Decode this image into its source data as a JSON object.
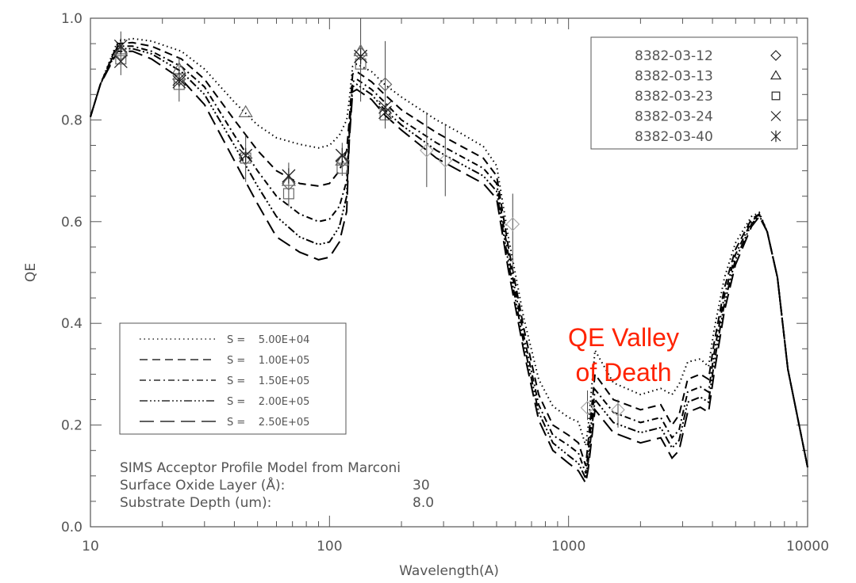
{
  "chart_data": {
    "type": "line",
    "title": "",
    "xlabel": "Wavelength(A)",
    "ylabel": "QE",
    "xscale": "log",
    "xlim": [
      10,
      10000
    ],
    "ylim": [
      0.0,
      1.0
    ],
    "xticks": [
      "10",
      "100",
      "1000",
      "10000"
    ],
    "yticks": [
      "0.0",
      "0.2",
      "0.4",
      "0.6",
      "0.8",
      "1.0"
    ],
    "grid": false,
    "x": [
      10,
      11,
      13,
      15,
      18,
      24,
      30,
      40,
      50,
      60,
      75,
      90,
      100,
      110,
      118,
      121,
      125,
      130,
      150,
      170,
      200,
      280,
      350,
      440,
      500,
      560,
      650,
      750,
      860,
      1000,
      1100,
      1180,
      1210,
      1290,
      1540,
      2000,
      2430,
      2710,
      2900,
      3150,
      3560,
      3850,
      4060,
      4490,
      4990,
      5820,
      6280,
      6780,
      7480,
      8270,
      10000
    ],
    "series": [
      {
        "name": "S =   5.00E+04",
        "style": "dotted",
        "values": [
          0.806,
          0.87,
          0.955,
          0.96,
          0.955,
          0.935,
          0.9,
          0.835,
          0.79,
          0.765,
          0.752,
          0.745,
          0.75,
          0.77,
          0.8,
          0.84,
          0.905,
          0.91,
          0.895,
          0.87,
          0.845,
          0.8,
          0.775,
          0.748,
          0.71,
          0.57,
          0.41,
          0.29,
          0.237,
          0.215,
          0.206,
          0.16,
          0.2,
          0.347,
          0.283,
          0.26,
          0.272,
          0.26,
          0.28,
          0.324,
          0.33,
          0.315,
          0.386,
          0.49,
          0.558,
          0.61,
          0.618,
          0.58,
          0.49,
          0.31,
          0.117
        ]
      },
      {
        "name": "S =   1.00E+05",
        "style": "dashed",
        "values": [
          0.806,
          0.87,
          0.95,
          0.952,
          0.945,
          0.92,
          0.88,
          0.8,
          0.74,
          0.7,
          0.675,
          0.67,
          0.675,
          0.7,
          0.74,
          0.8,
          0.89,
          0.895,
          0.875,
          0.85,
          0.82,
          0.775,
          0.75,
          0.725,
          0.69,
          0.55,
          0.39,
          0.26,
          0.2,
          0.18,
          0.165,
          0.12,
          0.17,
          0.3,
          0.25,
          0.23,
          0.24,
          0.2,
          0.22,
          0.29,
          0.3,
          0.29,
          0.36,
          0.47,
          0.545,
          0.605,
          0.615,
          0.58,
          0.49,
          0.31,
          0.117
        ]
      },
      {
        "name": "S =   1.50E+05",
        "style": "dash-dot",
        "values": [
          0.806,
          0.87,
          0.945,
          0.945,
          0.935,
          0.905,
          0.865,
          0.77,
          0.7,
          0.65,
          0.615,
          0.6,
          0.605,
          0.63,
          0.68,
          0.78,
          0.875,
          0.88,
          0.86,
          0.835,
          0.8,
          0.755,
          0.73,
          0.705,
          0.675,
          0.535,
          0.375,
          0.24,
          0.18,
          0.16,
          0.145,
          0.105,
          0.15,
          0.27,
          0.225,
          0.205,
          0.215,
          0.175,
          0.19,
          0.265,
          0.275,
          0.265,
          0.34,
          0.455,
          0.535,
          0.6,
          0.615,
          0.58,
          0.49,
          0.31,
          0.117
        ]
      },
      {
        "name": "S =   2.00E+05",
        "style": "dash-dot-dot",
        "values": [
          0.806,
          0.87,
          0.94,
          0.94,
          0.93,
          0.895,
          0.85,
          0.75,
          0.67,
          0.61,
          0.57,
          0.555,
          0.56,
          0.59,
          0.65,
          0.77,
          0.865,
          0.87,
          0.85,
          0.82,
          0.79,
          0.74,
          0.715,
          0.69,
          0.66,
          0.52,
          0.36,
          0.225,
          0.165,
          0.14,
          0.125,
          0.095,
          0.13,
          0.25,
          0.205,
          0.185,
          0.195,
          0.155,
          0.17,
          0.245,
          0.255,
          0.245,
          0.32,
          0.44,
          0.525,
          0.595,
          0.612,
          0.58,
          0.49,
          0.31,
          0.117
        ]
      },
      {
        "name": "S =   2.50E+05",
        "style": "long-dash",
        "values": [
          0.806,
          0.87,
          0.935,
          0.935,
          0.92,
          0.88,
          0.83,
          0.72,
          0.635,
          0.57,
          0.54,
          0.525,
          0.53,
          0.56,
          0.62,
          0.76,
          0.855,
          0.86,
          0.84,
          0.81,
          0.78,
          0.725,
          0.7,
          0.675,
          0.645,
          0.505,
          0.345,
          0.21,
          0.15,
          0.125,
          0.11,
          0.086,
          0.115,
          0.23,
          0.185,
          0.165,
          0.175,
          0.135,
          0.15,
          0.225,
          0.235,
          0.225,
          0.3,
          0.425,
          0.515,
          0.59,
          0.61,
          0.58,
          0.49,
          0.31,
          0.117
        ]
      }
    ],
    "measurements_legend": [
      {
        "name": "8382-03-12",
        "symbol": "diamond"
      },
      {
        "name": "8382-03-13",
        "symbol": "triangle"
      },
      {
        "name": "8382-03-23",
        "symbol": "square"
      },
      {
        "name": "8382-03-24",
        "symbol": "x"
      },
      {
        "name": "8382-03-40",
        "symbol": "asterisk"
      }
    ],
    "measurements": [
      {
        "wavelength": 13.4,
        "err": [
          0.888,
          0.974
        ],
        "points": {
          "diamond": 0.93,
          "triangle": 0.935,
          "square": 0.92,
          "x": 0.915,
          "asterisk": 0.945
        }
      },
      {
        "wavelength": 23.5,
        "err": [
          0.836,
          0.924
        ],
        "points": {
          "diamond": 0.88,
          "triangle": 0.9,
          "square": 0.87,
          "x": 0.875,
          "asterisk": 0.88
        }
      },
      {
        "wavelength": 44.6,
        "err": [
          0.678,
          0.768
        ],
        "points": {
          "diamond": 0.725,
          "triangle": 0.815,
          "square": 0.725,
          "x": 0.73,
          "asterisk": 0.73
        }
      },
      {
        "wavelength": 67.5,
        "err": [
          0.63,
          0.716
        ],
        "points": {
          "diamond": 0.675,
          "triangle": 0.68,
          "square": 0.655,
          "x": 0.69,
          "asterisk": 0.69
        }
      },
      {
        "wavelength": 113,
        "err": [
          0.69,
          0.755
        ],
        "points": {
          "diamond": 0.72,
          "triangle": 0.72,
          "square": 0.705,
          "x": 0.73,
          "asterisk": 0.73
        }
      },
      {
        "wavelength": 135,
        "err": [
          0.836,
          1.0
        ],
        "points": {
          "diamond": 0.93,
          "triangle": 0.935,
          "square": 0.91,
          "x": 0.925,
          "asterisk": 0.925
        }
      },
      {
        "wavelength": 171,
        "err": [
          0.783,
          0.955
        ],
        "points": {
          "diamond": 0.87,
          "square": 0.81,
          "x": 0.825,
          "asterisk": 0.815
        }
      },
      {
        "wavelength": 255,
        "err": [
          0.668,
          0.815
        ],
        "points": {
          "diamond": 0.74
        }
      },
      {
        "wavelength": 305,
        "err": [
          0.65,
          0.792
        ],
        "points": {
          "diamond": 0.72
        }
      },
      {
        "wavelength": 584,
        "err": [
          0.5,
          0.655
        ],
        "points": {
          "diamond": 0.595
        }
      },
      {
        "wavelength": 1200,
        "err": [
          0.21,
          0.268
        ],
        "points": {
          "diamond": 0.234
        }
      },
      {
        "wavelength": 1610,
        "err": [
          0.195,
          0.25
        ],
        "points": {
          "diamond": 0.23
        }
      }
    ],
    "annotations": {
      "model_title": "SIMS Acceptor Profile Model from Marconi",
      "oxide_label": "Surface Oxide Layer (Å):",
      "oxide_value": "30",
      "depth_label": "Substrate Depth (um):",
      "depth_value": "8.0",
      "valley_line1": "QE Valley",
      "valley_line2": "of Death"
    },
    "legend_placement": {
      "model": "lower-left",
      "measurements": "top-right"
    },
    "colors": {
      "lines": "#000000",
      "annotation": "#ff2200",
      "axes": "#555555",
      "markers": "#777777"
    }
  }
}
